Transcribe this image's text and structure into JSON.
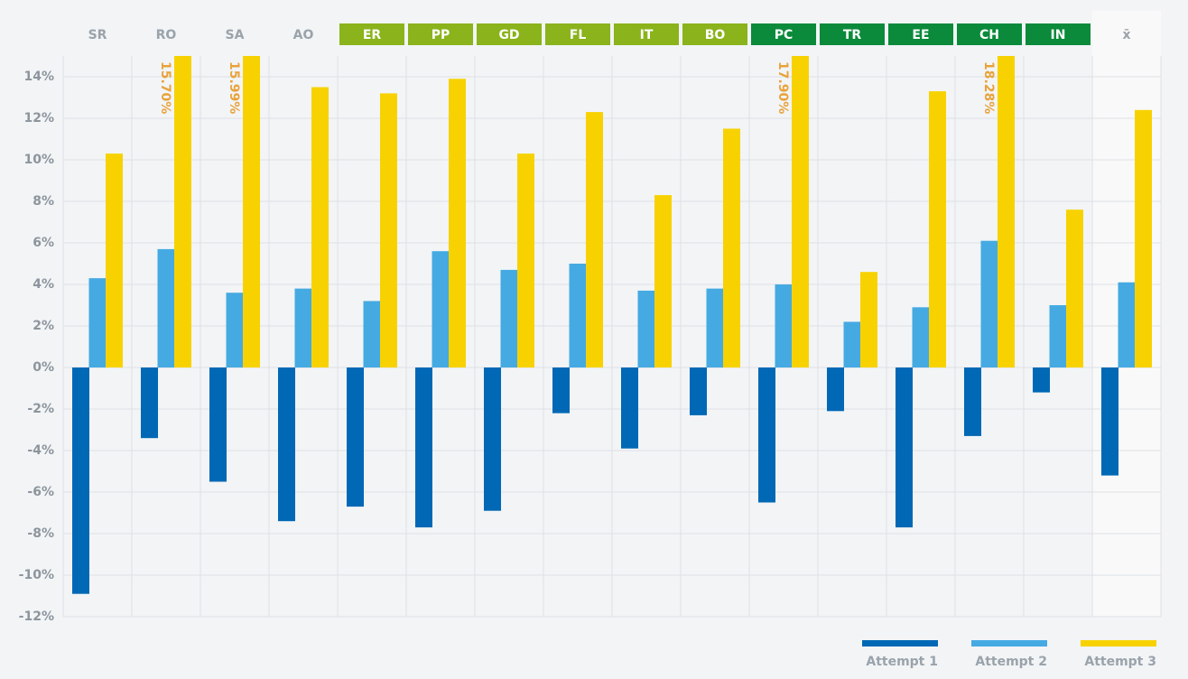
{
  "chart_data": {
    "type": "bar",
    "categories": [
      "SR",
      "RO",
      "SA",
      "AO",
      "ER",
      "PP",
      "GD",
      "FL",
      "IT",
      "BO",
      "PC",
      "TR",
      "EE",
      "CH",
      "IN",
      "x̄"
    ],
    "category_colors": [
      null,
      null,
      null,
      null,
      "#8ab31c",
      "#8ab31c",
      "#8ab31c",
      "#8ab31c",
      "#8ab31c",
      "#8ab31c",
      "#0a8a3a",
      "#0a8a3a",
      "#0a8a3a",
      "#0a8a3a",
      "#0a8a3a",
      null
    ],
    "series": [
      {
        "name": "Attempt 1",
        "color": "#0068b5",
        "values": [
          -10.9,
          -3.4,
          -5.5,
          -7.4,
          -6.7,
          -7.7,
          -6.9,
          -2.2,
          -3.9,
          -2.3,
          -6.5,
          -2.1,
          -7.7,
          -3.3,
          -1.2,
          -5.2
        ]
      },
      {
        "name": "Attempt 2",
        "color": "#45aae2",
        "values": [
          4.3,
          5.7,
          3.6,
          3.8,
          3.2,
          5.6,
          4.7,
          5.0,
          3.7,
          3.8,
          4.0,
          2.2,
          2.9,
          6.1,
          3.0,
          4.1
        ]
      },
      {
        "name": "Attempt 3",
        "color": "#f7d200",
        "values": [
          10.3,
          15.7,
          15.99,
          13.5,
          13.2,
          13.9,
          10.3,
          12.3,
          8.3,
          11.5,
          17.9,
          4.6,
          13.3,
          18.28,
          7.6,
          12.4
        ],
        "value_labels": [
          null,
          "15.70%",
          "15.99%",
          null,
          null,
          null,
          null,
          null,
          null,
          null,
          "17.90%",
          null,
          null,
          "18.28%",
          null,
          null
        ]
      }
    ],
    "ylim": [
      -12,
      15
    ],
    "yticks": [
      {
        "value": -12,
        "label": "-12%"
      },
      {
        "value": -10,
        "label": "-10%"
      },
      {
        "value": -8,
        "label": "-8%"
      },
      {
        "value": -6,
        "label": "-6%"
      },
      {
        "value": -4,
        "label": "-4%"
      },
      {
        "value": -2,
        "label": "-2%"
      },
      {
        "value": 0,
        "label": "0%"
      },
      {
        "value": 2,
        "label": "2%"
      },
      {
        "value": 4,
        "label": "4%"
      },
      {
        "value": 6,
        "label": "6%"
      },
      {
        "value": 8,
        "label": "8%"
      },
      {
        "value": 10,
        "label": "10%"
      },
      {
        "value": 12,
        "label": "12%"
      },
      {
        "value": 14,
        "label": "14%"
      }
    ],
    "grid": true,
    "legend": "bottom-right"
  }
}
